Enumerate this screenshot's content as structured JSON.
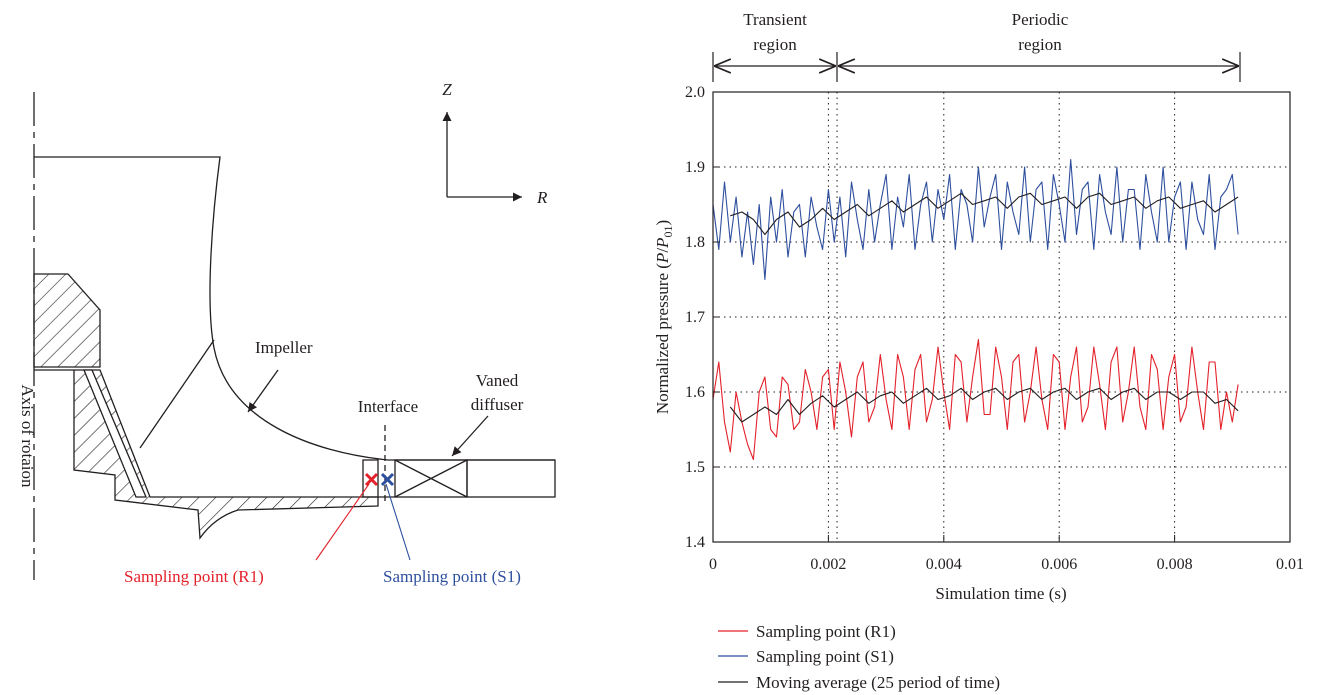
{
  "diagram": {
    "axis_z": "Z",
    "axis_r": "R",
    "impeller": "Impeller",
    "interface": "Interface",
    "vaned_diffuser_line1": "Vaned",
    "vaned_diffuser_line2": "diffuser",
    "axis_of_rotation": "Axis of rotaion",
    "sampling_r1": "Sampling point (R1)",
    "sampling_s1": "Sampling point (S1)",
    "colors": {
      "r1": "#e3212b",
      "s1": "#2e4f9e",
      "line": "#231f20"
    }
  },
  "regions": {
    "transient_line1": "Transient",
    "transient_line2": "region",
    "periodic_line1": "Periodic",
    "periodic_line2": "region"
  },
  "legend": {
    "r1": "Sampling point (R1)",
    "s1": "Sampling point (S1)",
    "avg": "Moving average (25 period of time)"
  },
  "chart_data": {
    "type": "line",
    "xlabel": "Simulation time (s)",
    "ylabel": "Normalized pressure (P/P01)",
    "xlim": [
      0,
      0.01
    ],
    "ylim": [
      1.4,
      2.0
    ],
    "xticks": [
      "0",
      "0.002",
      "0.004",
      "0.006",
      "0.008",
      "0.01"
    ],
    "yticks": [
      "1.4",
      "1.5",
      "1.6",
      "1.7",
      "1.8",
      "1.9",
      "2.0"
    ],
    "grid": "dotted",
    "transient_end": 0.00215,
    "sim_end": 0.0091,
    "series": [
      {
        "name": "Sampling point (R1)",
        "color": "#e3212b",
        "x": [
          0.0,
          0.0001,
          0.0002,
          0.0003,
          0.0004,
          0.0005,
          0.0006,
          0.0007,
          0.0008,
          0.0009,
          0.001,
          0.0011,
          0.0012,
          0.0013,
          0.0014,
          0.0015,
          0.0016,
          0.0017,
          0.0018,
          0.0019,
          0.002,
          0.0021,
          0.0022,
          0.0023,
          0.0024,
          0.0025,
          0.0026,
          0.0027,
          0.0028,
          0.0029,
          0.003,
          0.0031,
          0.0032,
          0.0033,
          0.0034,
          0.0035,
          0.0036,
          0.0037,
          0.0038,
          0.0039,
          0.004,
          0.0041,
          0.0042,
          0.0043,
          0.0044,
          0.0045,
          0.0046,
          0.0047,
          0.0048,
          0.0049,
          0.005,
          0.0051,
          0.0052,
          0.0053,
          0.0054,
          0.0055,
          0.0056,
          0.0057,
          0.0058,
          0.0059,
          0.006,
          0.0061,
          0.0062,
          0.0063,
          0.0064,
          0.0065,
          0.0066,
          0.0067,
          0.0068,
          0.0069,
          0.007,
          0.0071,
          0.0072,
          0.0073,
          0.0074,
          0.0075,
          0.0076,
          0.0077,
          0.0078,
          0.0079,
          0.008,
          0.0081,
          0.0082,
          0.0083,
          0.0084,
          0.0085,
          0.0086,
          0.0087,
          0.0088,
          0.0089,
          0.009,
          0.0091
        ],
        "y": [
          1.59,
          1.64,
          1.56,
          1.52,
          1.6,
          1.56,
          1.53,
          1.51,
          1.6,
          1.62,
          1.55,
          1.54,
          1.62,
          1.61,
          1.55,
          1.56,
          1.63,
          1.6,
          1.55,
          1.62,
          1.63,
          1.55,
          1.64,
          1.6,
          1.54,
          1.62,
          1.64,
          1.56,
          1.58,
          1.65,
          1.59,
          1.55,
          1.65,
          1.62,
          1.55,
          1.63,
          1.65,
          1.56,
          1.59,
          1.66,
          1.6,
          1.55,
          1.65,
          1.64,
          1.56,
          1.62,
          1.67,
          1.57,
          1.57,
          1.66,
          1.62,
          1.55,
          1.64,
          1.65,
          1.56,
          1.6,
          1.66,
          1.59,
          1.55,
          1.65,
          1.64,
          1.55,
          1.62,
          1.66,
          1.56,
          1.58,
          1.66,
          1.61,
          1.55,
          1.64,
          1.66,
          1.56,
          1.6,
          1.66,
          1.58,
          1.55,
          1.65,
          1.63,
          1.55,
          1.62,
          1.65,
          1.56,
          1.58,
          1.66,
          1.6,
          1.55,
          1.64,
          1.64,
          1.55,
          1.6,
          1.56,
          1.61
        ]
      },
      {
        "name": "Sampling point (S1)",
        "color": "#2e4f9e",
        "x": [
          0.0,
          0.0001,
          0.0002,
          0.0003,
          0.0004,
          0.0005,
          0.0006,
          0.0007,
          0.0008,
          0.0009,
          0.001,
          0.0011,
          0.0012,
          0.0013,
          0.0014,
          0.0015,
          0.0016,
          0.0017,
          0.0018,
          0.0019,
          0.002,
          0.0021,
          0.0022,
          0.0023,
          0.0024,
          0.0025,
          0.0026,
          0.0027,
          0.0028,
          0.0029,
          0.003,
          0.0031,
          0.0032,
          0.0033,
          0.0034,
          0.0035,
          0.0036,
          0.0037,
          0.0038,
          0.0039,
          0.004,
          0.0041,
          0.0042,
          0.0043,
          0.0044,
          0.0045,
          0.0046,
          0.0047,
          0.0048,
          0.0049,
          0.005,
          0.0051,
          0.0052,
          0.0053,
          0.0054,
          0.0055,
          0.0056,
          0.0057,
          0.0058,
          0.0059,
          0.006,
          0.0061,
          0.0062,
          0.0063,
          0.0064,
          0.0065,
          0.0066,
          0.0067,
          0.0068,
          0.0069,
          0.007,
          0.0071,
          0.0072,
          0.0073,
          0.0074,
          0.0075,
          0.0076,
          0.0077,
          0.0078,
          0.0079,
          0.008,
          0.0081,
          0.0082,
          0.0083,
          0.0084,
          0.0085,
          0.0086,
          0.0087,
          0.0088,
          0.0089,
          0.009,
          0.0091
        ],
        "y": [
          1.85,
          1.79,
          1.88,
          1.8,
          1.86,
          1.78,
          1.84,
          1.77,
          1.85,
          1.75,
          1.86,
          1.8,
          1.87,
          1.78,
          1.84,
          1.85,
          1.78,
          1.86,
          1.82,
          1.79,
          1.87,
          1.8,
          1.86,
          1.78,
          1.88,
          1.83,
          1.79,
          1.87,
          1.8,
          1.85,
          1.89,
          1.79,
          1.86,
          1.82,
          1.89,
          1.79,
          1.85,
          1.88,
          1.8,
          1.87,
          1.83,
          1.89,
          1.79,
          1.87,
          1.85,
          1.8,
          1.9,
          1.82,
          1.86,
          1.89,
          1.79,
          1.88,
          1.84,
          1.81,
          1.9,
          1.8,
          1.87,
          1.88,
          1.79,
          1.89,
          1.85,
          1.8,
          1.91,
          1.81,
          1.87,
          1.88,
          1.79,
          1.89,
          1.84,
          1.81,
          1.9,
          1.8,
          1.87,
          1.87,
          1.79,
          1.89,
          1.84,
          1.8,
          1.9,
          1.8,
          1.86,
          1.88,
          1.79,
          1.88,
          1.83,
          1.81,
          1.89,
          1.79,
          1.86,
          1.87,
          1.89,
          1.81
        ]
      },
      {
        "name": "Moving average (25 period of time)",
        "color": "#231f20",
        "segments": [
          {
            "x": [
              0.0003,
              0.0005,
              0.0007,
              0.0009,
              0.0011,
              0.0013,
              0.0015,
              0.0017,
              0.0019,
              0.0021,
              0.0023,
              0.0025,
              0.0027,
              0.0029,
              0.0031,
              0.0033,
              0.0035,
              0.0037,
              0.0039,
              0.0041,
              0.0043,
              0.0045,
              0.0047,
              0.0049,
              0.0051,
              0.0053,
              0.0055,
              0.0057,
              0.0059,
              0.0061,
              0.0063,
              0.0065,
              0.0067,
              0.0069,
              0.0071,
              0.0073,
              0.0075,
              0.0077,
              0.0079,
              0.0081,
              0.0083,
              0.0085,
              0.0087,
              0.0089,
              0.0091
            ],
            "y": [
              1.835,
              1.84,
              1.83,
              1.81,
              1.83,
              1.84,
              1.82,
              1.83,
              1.845,
              1.83,
              1.84,
              1.85,
              1.835,
              1.845,
              1.855,
              1.84,
              1.85,
              1.86,
              1.845,
              1.855,
              1.865,
              1.85,
              1.855,
              1.86,
              1.845,
              1.86,
              1.865,
              1.85,
              1.855,
              1.86,
              1.845,
              1.86,
              1.865,
              1.85,
              1.855,
              1.86,
              1.845,
              1.855,
              1.86,
              1.845,
              1.85,
              1.855,
              1.84,
              1.85,
              1.86
            ]
          },
          {
            "x": [
              0.0003,
              0.0005,
              0.0007,
              0.0009,
              0.0011,
              0.0013,
              0.0015,
              0.0017,
              0.0019,
              0.0021,
              0.0023,
              0.0025,
              0.0027,
              0.0029,
              0.0031,
              0.0033,
              0.0035,
              0.0037,
              0.0039,
              0.0041,
              0.0043,
              0.0045,
              0.0047,
              0.0049,
              0.0051,
              0.0053,
              0.0055,
              0.0057,
              0.0059,
              0.0061,
              0.0063,
              0.0065,
              0.0067,
              0.0069,
              0.0071,
              0.0073,
              0.0075,
              0.0077,
              0.0079,
              0.0081,
              0.0083,
              0.0085,
              0.0087,
              0.0089,
              0.0091
            ],
            "y": [
              1.58,
              1.56,
              1.57,
              1.58,
              1.57,
              1.59,
              1.57,
              1.585,
              1.595,
              1.58,
              1.59,
              1.6,
              1.585,
              1.595,
              1.6,
              1.585,
              1.595,
              1.605,
              1.59,
              1.595,
              1.605,
              1.59,
              1.6,
              1.605,
              1.59,
              1.6,
              1.605,
              1.59,
              1.6,
              1.605,
              1.59,
              1.6,
              1.605,
              1.59,
              1.6,
              1.605,
              1.59,
              1.6,
              1.6,
              1.59,
              1.6,
              1.6,
              1.585,
              1.59,
              1.575
            ]
          }
        ]
      }
    ]
  }
}
